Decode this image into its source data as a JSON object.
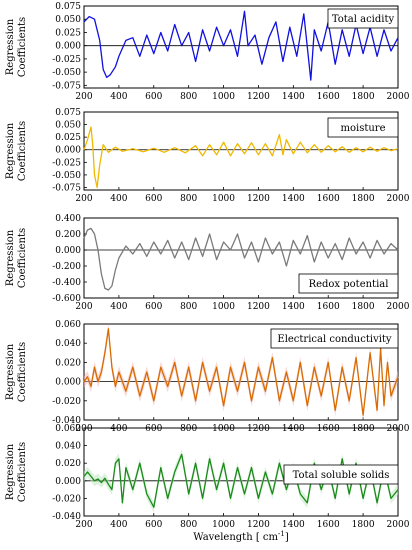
{
  "xlabel": "Wavelength",
  "xunit": "[ cm",
  "xunit_sup": "-1",
  "xunit_end": "]",
  "ylabel_line1": "Regression",
  "ylabel_line2": "Coefficients",
  "chart_data": [
    {
      "type": "line",
      "legend": "Total acidity",
      "color": "#1010e0",
      "xlim": [
        200,
        2000
      ],
      "ylim": [
        -0.08,
        0.075
      ],
      "yticks": [
        0.075,
        0.05,
        0.025,
        0.0,
        -0.025,
        -0.05,
        -0.075
      ],
      "yticklabels": [
        "0.075",
        "0.050",
        "0.025",
        "0.000",
        "-0.025",
        "-0.050",
        "-0.075"
      ],
      "xticks": [
        200,
        400,
        600,
        800,
        1000,
        1200,
        1400,
        1600,
        1800,
        2000
      ],
      "x": [
        200,
        230,
        260,
        290,
        310,
        330,
        350,
        380,
        400,
        440,
        480,
        520,
        560,
        600,
        640,
        680,
        720,
        760,
        800,
        840,
        880,
        920,
        960,
        1000,
        1040,
        1080,
        1120,
        1140,
        1180,
        1220,
        1260,
        1300,
        1340,
        1380,
        1420,
        1460,
        1500,
        1520,
        1560,
        1600,
        1640,
        1680,
        1720,
        1760,
        1800,
        1840,
        1880,
        1920,
        1960,
        2000
      ],
      "y": [
        0.045,
        0.055,
        0.05,
        0.01,
        -0.045,
        -0.06,
        -0.055,
        -0.04,
        -0.02,
        0.01,
        0.015,
        -0.02,
        0.02,
        -0.015,
        0.025,
        -0.01,
        0.04,
        0.0,
        0.025,
        -0.03,
        0.03,
        -0.01,
        0.035,
        0.0,
        0.03,
        -0.02,
        0.065,
        0.0,
        0.02,
        -0.035,
        0.015,
        0.045,
        -0.03,
        0.035,
        -0.02,
        0.06,
        -0.065,
        0.03,
        -0.01,
        0.045,
        -0.035,
        0.03,
        -0.02,
        0.04,
        -0.015,
        0.035,
        -0.02,
        0.03,
        -0.01,
        0.015
      ]
    },
    {
      "type": "line",
      "legend": "moisture",
      "color": "#f0b800",
      "xlim": [
        200,
        2000
      ],
      "ylim": [
        -0.08,
        0.075
      ],
      "yticks": [
        0.075,
        0.05,
        0.025,
        0.0,
        -0.025,
        -0.05,
        -0.075
      ],
      "yticklabels": [
        "0.075",
        "0.050",
        "0.025",
        "0.000",
        "-0.025",
        "-0.050",
        "-0.075"
      ],
      "xticks": [
        200,
        400,
        600,
        800,
        1000,
        1200,
        1400,
        1600,
        1800,
        2000
      ],
      "x": [
        200,
        220,
        240,
        250,
        260,
        275,
        290,
        310,
        340,
        380,
        420,
        480,
        540,
        600,
        660,
        720,
        780,
        840,
        880,
        920,
        960,
        1000,
        1040,
        1080,
        1120,
        1160,
        1200,
        1240,
        1280,
        1320,
        1340,
        1360,
        1400,
        1440,
        1480,
        1520,
        1560,
        1600,
        1640,
        1680,
        1720,
        1760,
        1800,
        1840,
        1880,
        1920,
        1960,
        2000
      ],
      "y": [
        0.0,
        0.02,
        0.045,
        0.01,
        -0.05,
        -0.075,
        -0.03,
        0.01,
        -0.005,
        0.005,
        -0.003,
        0.002,
        -0.004,
        0.003,
        -0.005,
        0.004,
        -0.006,
        0.008,
        -0.012,
        0.01,
        -0.01,
        0.015,
        -0.012,
        0.012,
        -0.008,
        0.014,
        -0.01,
        0.012,
        -0.012,
        0.03,
        -0.01,
        0.02,
        -0.008,
        0.015,
        -0.006,
        0.01,
        -0.005,
        0.008,
        -0.004,
        0.006,
        -0.005,
        0.004,
        -0.004,
        0.005,
        -0.003,
        0.004,
        -0.002,
        0.002
      ]
    },
    {
      "type": "line",
      "legend": "Redox potential",
      "color": "#7a7a7a",
      "xlim": [
        200,
        2000
      ],
      "ylim": [
        -0.6,
        0.4
      ],
      "yticks": [
        0.4,
        0.2,
        0.0,
        -0.2,
        -0.4,
        -0.6
      ],
      "yticklabels": [
        "0.400",
        "0.200",
        "0.000",
        "-0.200",
        "-0.400",
        "-0.600"
      ],
      "xticks": [
        200,
        400,
        600,
        800,
        1000,
        1200,
        1400,
        1600,
        1800,
        2000
      ],
      "x": [
        200,
        220,
        240,
        260,
        280,
        300,
        320,
        340,
        360,
        380,
        400,
        440,
        480,
        520,
        560,
        600,
        640,
        680,
        720,
        760,
        800,
        840,
        880,
        920,
        960,
        1000,
        1040,
        1080,
        1120,
        1160,
        1200,
        1240,
        1280,
        1320,
        1360,
        1400,
        1440,
        1480,
        1520,
        1560,
        1600,
        1640,
        1680,
        1720,
        1760,
        1800,
        1840,
        1880,
        1920,
        1960,
        2000
      ],
      "y": [
        0.15,
        0.25,
        0.27,
        0.2,
        0.0,
        -0.3,
        -0.48,
        -0.5,
        -0.45,
        -0.25,
        -0.1,
        0.05,
        -0.05,
        0.08,
        -0.08,
        0.1,
        -0.05,
        0.12,
        -0.1,
        0.1,
        -0.12,
        0.15,
        -0.08,
        0.2,
        -0.12,
        0.1,
        0.0,
        0.2,
        -0.1,
        0.1,
        -0.15,
        0.15,
        -0.05,
        0.1,
        -0.2,
        0.12,
        -0.05,
        0.18,
        -0.15,
        0.1,
        -0.1,
        0.08,
        -0.12,
        0.15,
        -0.05,
        0.1,
        -0.1,
        0.12,
        -0.05,
        0.08,
        0.0
      ]
    },
    {
      "type": "line",
      "legend": "Electrical conductivity",
      "color": "#d96b00",
      "band_color": "#f3b6b0",
      "xlim": [
        200,
        2000
      ],
      "ylim": [
        -0.04,
        0.06
      ],
      "yticks": [
        0.06,
        0.04,
        0.02,
        0.0,
        -0.02,
        -0.04
      ],
      "yticklabels": [
        "0.060",
        "0.040",
        "0.020",
        "0.000",
        "-0.020",
        "-0.040"
      ],
      "xticks": [
        200,
        400,
        600,
        800,
        1000,
        1200,
        1400,
        1600,
        1800,
        2000
      ],
      "x": [
        200,
        220,
        240,
        260,
        280,
        300,
        320,
        340,
        360,
        380,
        400,
        440,
        480,
        520,
        560,
        600,
        640,
        680,
        720,
        760,
        800,
        840,
        880,
        920,
        960,
        1000,
        1040,
        1080,
        1120,
        1160,
        1200,
        1240,
        1280,
        1320,
        1360,
        1400,
        1440,
        1480,
        1520,
        1560,
        1600,
        1640,
        1680,
        1720,
        1760,
        1800,
        1840,
        1880,
        1900,
        1920,
        1940,
        1960,
        2000
      ],
      "y": [
        0.0,
        0.005,
        -0.005,
        0.015,
        0.0,
        0.01,
        0.03,
        0.055,
        0.015,
        -0.005,
        0.01,
        -0.01,
        0.015,
        -0.015,
        0.01,
        -0.02,
        0.015,
        -0.005,
        0.02,
        -0.015,
        0.015,
        -0.02,
        0.02,
        -0.01,
        0.015,
        -0.025,
        0.015,
        -0.01,
        0.02,
        -0.02,
        0.015,
        -0.01,
        0.025,
        -0.02,
        0.01,
        -0.02,
        0.02,
        -0.025,
        0.015,
        -0.015,
        0.02,
        -0.03,
        0.015,
        -0.02,
        0.025,
        -0.035,
        0.03,
        -0.03,
        0.035,
        -0.025,
        0.02,
        -0.015,
        0.005
      ]
    },
    {
      "type": "line",
      "legend": "Total soluble solids",
      "color": "#1a8a1a",
      "band_color": "#bfe8bf",
      "xlim": [
        200,
        2000
      ],
      "ylim": [
        -0.04,
        0.06
      ],
      "yticks": [
        0.06,
        0.04,
        0.02,
        0.0,
        -0.02,
        -0.04
      ],
      "yticklabels": [
        "0.060",
        "0.040",
        "0.020",
        "0.000",
        "-0.020",
        "-0.040"
      ],
      "xticks": [
        200,
        400,
        600,
        800,
        1000,
        1200,
        1400,
        1600,
        1800,
        2000
      ],
      "x": [
        200,
        220,
        240,
        260,
        280,
        300,
        320,
        340,
        360,
        380,
        400,
        420,
        440,
        480,
        520,
        560,
        600,
        640,
        680,
        720,
        760,
        800,
        840,
        880,
        920,
        960,
        1000,
        1040,
        1080,
        1120,
        1160,
        1200,
        1240,
        1280,
        1320,
        1360,
        1400,
        1440,
        1480,
        1520,
        1560,
        1600,
        1640,
        1680,
        1720,
        1760,
        1800,
        1840,
        1880,
        1920,
        1960,
        2000
      ],
      "y": [
        0.005,
        0.01,
        0.005,
        0.0,
        0.002,
        -0.002,
        0.003,
        -0.004,
        -0.01,
        0.02,
        0.025,
        -0.025,
        0.015,
        -0.01,
        0.02,
        -0.015,
        -0.03,
        0.015,
        -0.02,
        0.01,
        0.03,
        -0.015,
        0.02,
        -0.02,
        0.025,
        -0.01,
        0.02,
        -0.02,
        0.015,
        -0.015,
        0.015,
        -0.02,
        0.01,
        -0.015,
        0.02,
        -0.01,
        0.015,
        -0.015,
        -0.025,
        0.02,
        -0.01,
        0.015,
        -0.02,
        0.025,
        -0.015,
        0.02,
        -0.02,
        0.015,
        -0.025,
        0.015,
        -0.02,
        -0.01
      ]
    }
  ]
}
